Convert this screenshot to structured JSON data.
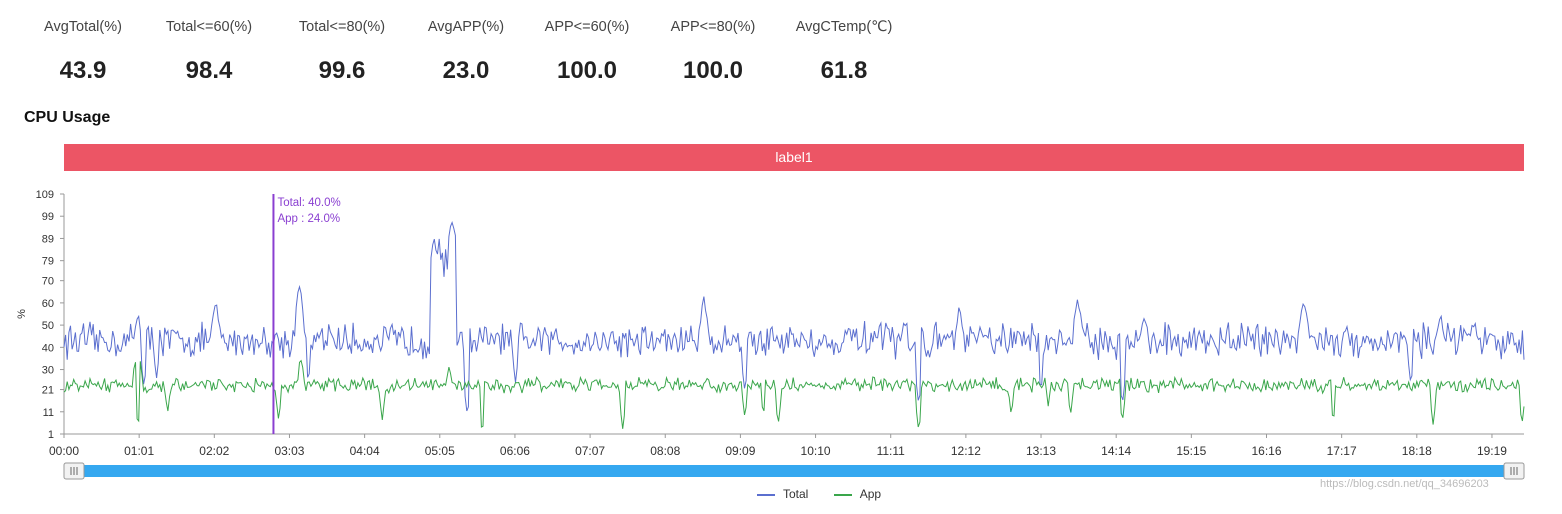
{
  "stats": [
    {
      "label": "AvgTotal(%)",
      "value": "43.9"
    },
    {
      "label": "Total<=60(%)",
      "value": "98.4"
    },
    {
      "label": "Total<=80(%)",
      "value": "99.6"
    },
    {
      "label": "AvgAPP(%)",
      "value": "23.0"
    },
    {
      "label": "APP<=60(%)",
      "value": "100.0"
    },
    {
      "label": "APP<=80(%)",
      "value": "100.0"
    },
    {
      "label": "AvgCTemp(℃)",
      "value": "61.8"
    }
  ],
  "chart_title": "CPU Usage",
  "band_label": "label1",
  "watermark": "https://blog.csdn.net/qq_34696203",
  "colors": {
    "total": "#5b6fcf",
    "app": "#3aa64b",
    "band": "#ec5565",
    "cursor": "#8a3fd1",
    "zoom": "#35a8f0"
  },
  "chart_data": {
    "type": "line",
    "ylabel": "%",
    "yticks": [
      1,
      11,
      21,
      30,
      40,
      50,
      60,
      70,
      79,
      89,
      99,
      109
    ],
    "ylim": [
      1,
      109
    ],
    "xlim": [
      "00:00",
      "19:45"
    ],
    "xticks": [
      "00:00",
      "01:01",
      "02:02",
      "03:03",
      "04:04",
      "05:05",
      "06:06",
      "07:07",
      "08:08",
      "09:09",
      "10:10",
      "11:11",
      "12:12",
      "13:13",
      "14:14",
      "15:15",
      "16:16",
      "17:17",
      "18:18",
      "19:19"
    ],
    "tooltip": {
      "x": "02:50",
      "lines": [
        "Total: 40.0%",
        "App  : 24.0%"
      ]
    },
    "series": [
      {
        "name": "Total",
        "color": "#5b6fcf",
        "mean": 43,
        "noise": 6,
        "spikes": [
          [
            1.0,
            56
          ],
          [
            2.05,
            60
          ],
          [
            3.18,
            68
          ],
          [
            3.6,
            49
          ],
          [
            5.0,
            88
          ],
          [
            5.25,
            98
          ],
          [
            8.65,
            62
          ],
          [
            12.1,
            58
          ],
          [
            13.7,
            62
          ],
          [
            14.6,
            55
          ],
          [
            16.75,
            62
          ],
          [
            18.6,
            55
          ]
        ],
        "dips": [
          [
            1.08,
            22
          ],
          [
            1.25,
            26
          ],
          [
            3.3,
            24
          ],
          [
            5.45,
            9
          ],
          [
            6.1,
            24
          ],
          [
            9.2,
            20
          ],
          [
            11.55,
            14
          ],
          [
            13.2,
            20
          ],
          [
            14.3,
            14
          ],
          [
            18.2,
            23
          ]
        ]
      },
      {
        "name": "App",
        "color": "#3aa64b",
        "mean": 23,
        "noise": 2.5,
        "spikes": [
          [
            1.0,
            40
          ],
          [
            3.2,
            35
          ],
          [
            5.2,
            32
          ]
        ],
        "dips": [
          [
            1.0,
            4
          ],
          [
            1.4,
            10
          ],
          [
            2.9,
            7
          ],
          [
            4.3,
            7
          ],
          [
            5.65,
            1
          ],
          [
            7.55,
            3
          ],
          [
            9.2,
            8
          ],
          [
            9.45,
            9
          ],
          [
            9.65,
            5
          ],
          [
            11.55,
            2
          ],
          [
            12.8,
            9
          ],
          [
            13.3,
            13
          ],
          [
            13.6,
            9
          ],
          [
            14.3,
            6
          ],
          [
            17.15,
            6
          ],
          [
            18.5,
            5
          ],
          [
            19.7,
            5
          ]
        ]
      }
    ]
  }
}
